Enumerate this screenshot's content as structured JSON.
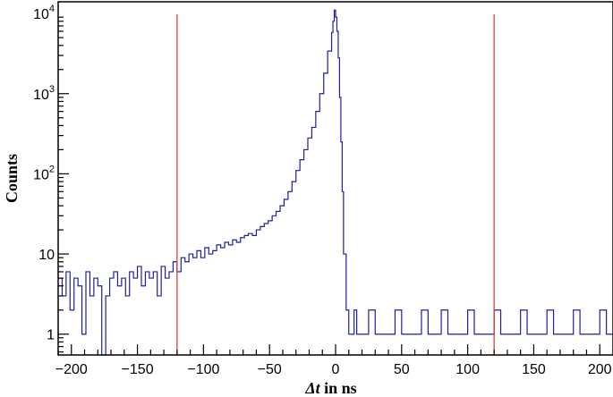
{
  "chart_data": {
    "type": "line",
    "drawstyle": "histogram-step",
    "xlabel_var": "Δt",
    "xlabel_rest": " in ns",
    "ylabel": "Counts",
    "xlim": [
      -210,
      210
    ],
    "ylim": [
      0.55,
      14000
    ],
    "y_scale": "log",
    "x_ticks": [
      -200,
      -150,
      -100,
      -50,
      0,
      50,
      100,
      150,
      200
    ],
    "x_tick_labels": [
      "−200",
      "−150",
      "−100",
      "−50",
      "0",
      "50",
      "100",
      "150",
      "200"
    ],
    "y_ticks": [
      {
        "value": 1,
        "base": "1",
        "exp": ""
      },
      {
        "value": 10,
        "base": "10",
        "exp": ""
      },
      {
        "value": 100,
        "base": "10",
        "exp": "2"
      },
      {
        "value": 1000,
        "base": "10",
        "exp": "3"
      },
      {
        "value": 10000,
        "base": "10",
        "exp": "4"
      }
    ],
    "colors": {
      "histogram": "#1f1f9e",
      "cut_lines": "#e03030",
      "axes": "#000000"
    },
    "cut_lines": [
      {
        "x": -120,
        "y_top": 10000
      },
      {
        "x": 120,
        "y_top": 10000
      }
    ],
    "series": [
      {
        "bin_edges": [
          -210,
          -207,
          -204,
          -201,
          -198,
          -195,
          -192,
          -189,
          -186,
          -183,
          -180,
          -177,
          -174,
          -171,
          -168,
          -165,
          -162,
          -159,
          -156,
          -153,
          -150,
          -147,
          -144,
          -141,
          -138,
          -135,
          -132,
          -129,
          -126,
          -123,
          -120,
          -117,
          -114,
          -111,
          -108,
          -105,
          -102,
          -99,
          -96,
          -93,
          -90,
          -87,
          -84,
          -81,
          -78,
          -75,
          -72,
          -69,
          -66,
          -63,
          -60,
          -57,
          -54,
          -51,
          -48,
          -45,
          -42,
          -39,
          -36,
          -33,
          -30,
          -27,
          -24,
          -21,
          -18,
          -15,
          -12,
          -9,
          -6,
          -3,
          -2,
          -1,
          0,
          1,
          2,
          3,
          4,
          5,
          6,
          8,
          10,
          12,
          14,
          16,
          20,
          25,
          30,
          35,
          40,
          45,
          50,
          55,
          60,
          65,
          70,
          75,
          80,
          85,
          90,
          95,
          100,
          105,
          110,
          115,
          120,
          125,
          130,
          135,
          140,
          145,
          150,
          155,
          160,
          165,
          170,
          175,
          180,
          185,
          190,
          195,
          200,
          205,
          210
        ],
        "counts": [
          5,
          3,
          6,
          2,
          5,
          4,
          1,
          6,
          3,
          5,
          4,
          0.55,
          3,
          5,
          6,
          4,
          5,
          3,
          6,
          5,
          7,
          4,
          6,
          5,
          6,
          3,
          7,
          5,
          6,
          8,
          6,
          9,
          8,
          10,
          9,
          11,
          9,
          12,
          10,
          11,
          13,
          12,
          14,
          13,
          15,
          14,
          16,
          17,
          18,
          17,
          20,
          22,
          24,
          26,
          30,
          34,
          40,
          48,
          60,
          80,
          110,
          150,
          200,
          280,
          380,
          600,
          1000,
          1800,
          3400,
          5800,
          8000,
          11000,
          9000,
          6000,
          2800,
          900,
          250,
          60,
          10,
          2,
          1,
          1,
          2,
          1,
          1,
          2,
          1,
          1,
          1,
          2,
          1,
          1,
          1,
          2,
          1,
          1,
          2,
          1,
          1,
          1,
          2,
          1,
          1,
          1,
          2,
          1,
          1,
          1,
          2,
          1,
          1,
          1,
          2,
          1,
          1,
          1,
          2,
          1,
          1,
          1,
          2,
          1
        ]
      }
    ]
  }
}
